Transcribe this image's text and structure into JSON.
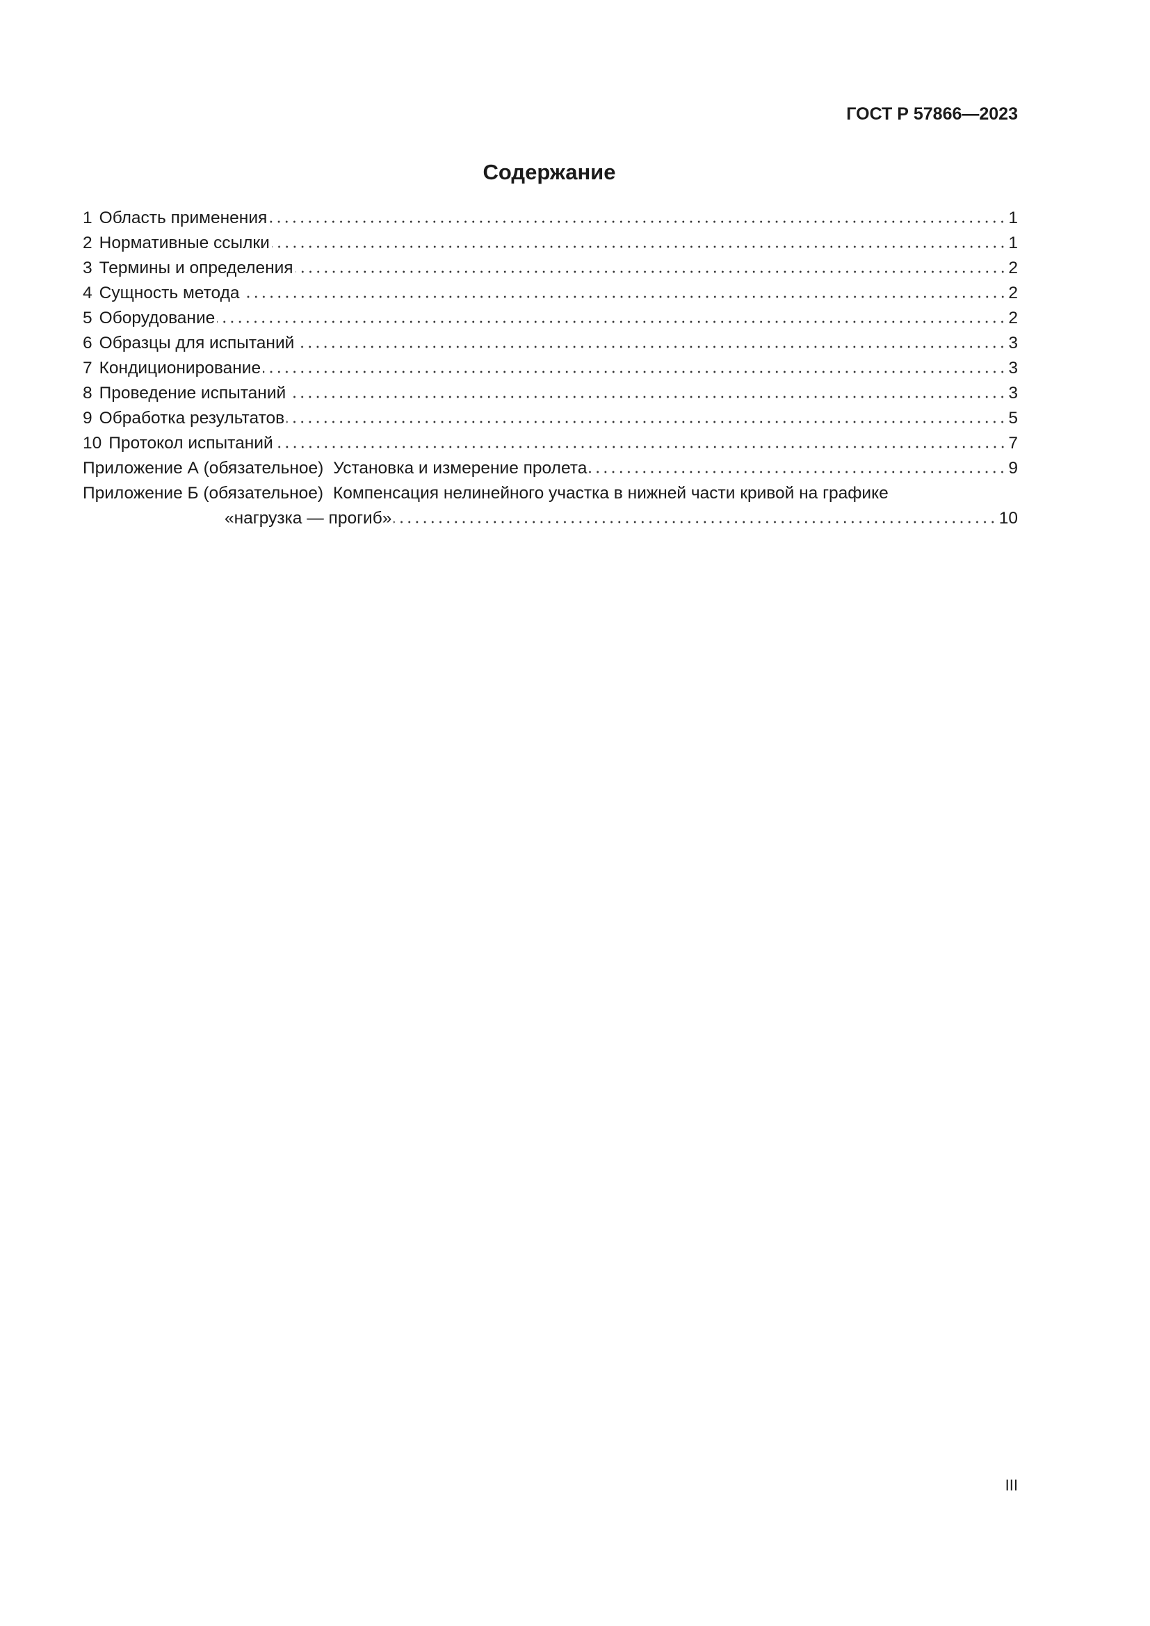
{
  "header": {
    "standard_code": "ГОСТ Р 57866—2023"
  },
  "title": "Содержание",
  "toc": [
    {
      "num": "1",
      "label": "Область применения",
      "page": "1"
    },
    {
      "num": "2",
      "label": "Нормативные ссылки",
      "page": "1"
    },
    {
      "num": "3",
      "label": "Термины и определения",
      "page": "2"
    },
    {
      "num": "4",
      "label": "Сущность метода",
      "page": "2"
    },
    {
      "num": "5",
      "label": "Оборудование",
      "page": "2"
    },
    {
      "num": "6",
      "label": "Образцы для испытаний",
      "page": "3"
    },
    {
      "num": "7",
      "label": "Кондиционирование",
      "page": "3"
    },
    {
      "num": "8",
      "label": "Проведение испытаний",
      "page": "3"
    },
    {
      "num": "9",
      "label": "Обработка результатов",
      "page": "5"
    },
    {
      "num": "10",
      "label": "Протокол испытаний",
      "page": "7"
    }
  ],
  "appendices": [
    {
      "prefix": "Приложение А (обязательное)",
      "label": "Установка и измерение пролета",
      "page": "9"
    },
    {
      "prefix": "Приложение Б (обязательное)",
      "label": "Компенсация нелинейного участка в нижней части кривой на графике",
      "label_cont": "«нагрузка — прогиб»",
      "page": "10"
    }
  ],
  "footer": {
    "page_number": "III"
  }
}
